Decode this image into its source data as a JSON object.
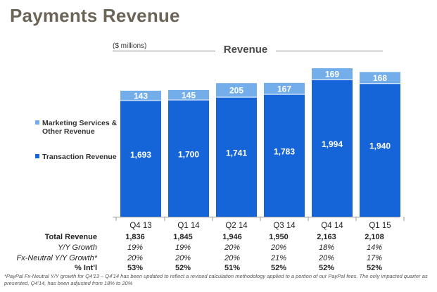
{
  "page_title": "Payments Revenue",
  "colors": {
    "transaction": "#1565d8",
    "marketing": "#74aeea",
    "title": "#6b6457",
    "axis": "#999999"
  },
  "chart_data": {
    "type": "bar",
    "stacked": true,
    "title": "Revenue",
    "units": "($ millions)",
    "categories": [
      "Q4 13",
      "Q1 14",
      "Q2 14",
      "Q3 14",
      "Q4 14",
      "Q1 15"
    ],
    "series": [
      {
        "name": "Transaction Revenue",
        "values": [
          1693,
          1700,
          1741,
          1783,
          1994,
          1940
        ],
        "labels": [
          "1,693",
          "1,700",
          "1,741",
          "1,783",
          "1,994",
          "1,940"
        ]
      },
      {
        "name": "Marketing Services & Other Revenue",
        "values": [
          143,
          145,
          205,
          167,
          169,
          168
        ],
        "labels": [
          "143",
          "145",
          "205",
          "167",
          "169",
          "168"
        ]
      }
    ],
    "ylim": [
      0,
      2163
    ]
  },
  "legend": {
    "marketing_line1": "Marketing Services &",
    "marketing_line2": "Other Revenue",
    "transaction": "Transaction Revenue"
  },
  "table": {
    "rows": [
      {
        "label": "Total Revenue",
        "values": [
          "1,836",
          "1,845",
          "1,946",
          "1,950",
          "2,163",
          "2,108"
        ]
      },
      {
        "label": "Y/Y Growth",
        "values": [
          "19%",
          "19%",
          "20%",
          "20%",
          "18%",
          "14%"
        ]
      },
      {
        "label": "Fx-Neutral Y/Y Growth*",
        "values": [
          "20%",
          "20%",
          "20%",
          "21%",
          "20%",
          "17%"
        ]
      },
      {
        "label": "% Int'l",
        "values": [
          "53%",
          "52%",
          "51%",
          "52%",
          "52%",
          "52%"
        ]
      }
    ]
  },
  "footnote": "*PayPal Fx-Neutral Y/Y growth for Q4'13 – Q4'14 has been updated to reflect a revised calculation methodology applied to a portion of our PayPal fees.  The only impacted quarter as presented, Q4'14, has been adjusted from 18% to 20%"
}
